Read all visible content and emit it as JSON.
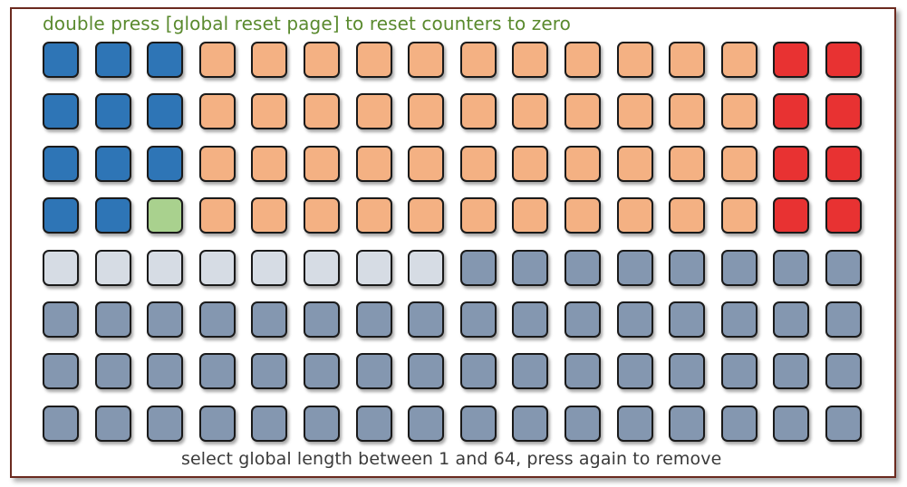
{
  "hints": {
    "top": "double press [global reset page] to reset counters to zero",
    "bottom": "select global length between 1 and 64, press again to remove"
  },
  "colors": {
    "blue": "#2e75b6",
    "orange": "#f4b183",
    "red": "#e83232",
    "green": "#a9d18e",
    "light": "#d6dce4",
    "gray": "#8497b0",
    "border": "#6b2a1f"
  },
  "grid": {
    "rows": [
      [
        "blue",
        "blue",
        "blue",
        "orange",
        "orange",
        "orange",
        "orange",
        "orange",
        "orange",
        "orange",
        "orange",
        "orange",
        "orange",
        "orange",
        "red",
        "red"
      ],
      [
        "blue",
        "blue",
        "blue",
        "orange",
        "orange",
        "orange",
        "orange",
        "orange",
        "orange",
        "orange",
        "orange",
        "orange",
        "orange",
        "orange",
        "red",
        "red"
      ],
      [
        "blue",
        "blue",
        "blue",
        "orange",
        "orange",
        "orange",
        "orange",
        "orange",
        "orange",
        "orange",
        "orange",
        "orange",
        "orange",
        "orange",
        "red",
        "red"
      ],
      [
        "blue",
        "blue",
        "green",
        "orange",
        "orange",
        "orange",
        "orange",
        "orange",
        "orange",
        "orange",
        "orange",
        "orange",
        "orange",
        "orange",
        "red",
        "red"
      ],
      [
        "light",
        "light",
        "light",
        "light",
        "light",
        "light",
        "light",
        "light",
        "gray",
        "gray",
        "gray",
        "gray",
        "gray",
        "gray",
        "gray",
        "gray"
      ],
      [
        "gray",
        "gray",
        "gray",
        "gray",
        "gray",
        "gray",
        "gray",
        "gray",
        "gray",
        "gray",
        "gray",
        "gray",
        "gray",
        "gray",
        "gray",
        "gray"
      ],
      [
        "gray",
        "gray",
        "gray",
        "gray",
        "gray",
        "gray",
        "gray",
        "gray",
        "gray",
        "gray",
        "gray",
        "gray",
        "gray",
        "gray",
        "gray",
        "gray"
      ],
      [
        "gray",
        "gray",
        "gray",
        "gray",
        "gray",
        "gray",
        "gray",
        "gray",
        "gray",
        "gray",
        "gray",
        "gray",
        "gray",
        "gray",
        "gray",
        "gray"
      ]
    ]
  }
}
